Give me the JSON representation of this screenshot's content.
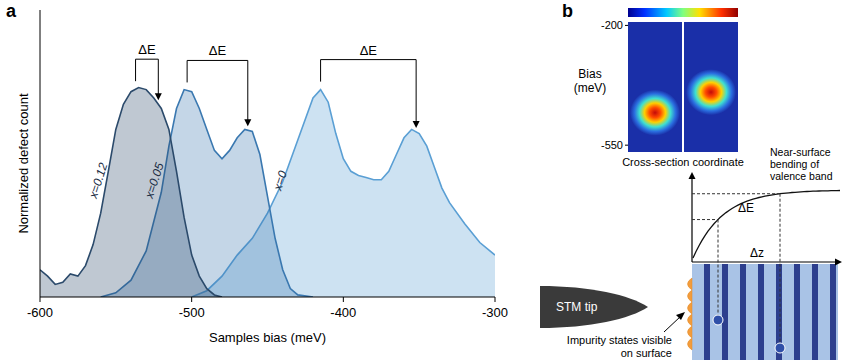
{
  "chart_data": {
    "type": "area",
    "label": "a",
    "x_label": "Samples bias (meV)",
    "y_label": "Normalized defect count",
    "xlim": [
      -600,
      -300
    ],
    "xticks": [
      -600,
      -500,
      -400,
      -300
    ],
    "ylim": [
      0,
      1.37
    ],
    "tick_labels": "x",
    "grid": false,
    "series": [
      {
        "name": "x=0.12",
        "color": "#2b4a6b",
        "x": [
          -600,
          -595,
          -590,
          -585,
          -580,
          -575,
          -570,
          -565,
          -560,
          -555,
          -550,
          -545,
          -540,
          -535,
          -530,
          -525,
          -520,
          -515,
          -510,
          -505,
          -500,
          -495,
          -490,
          -485,
          -480
        ],
        "values": [
          0.13,
          0.1,
          0.06,
          0.07,
          0.11,
          0.1,
          0.15,
          0.25,
          0.4,
          0.6,
          0.8,
          0.92,
          0.98,
          1.0,
          0.99,
          0.95,
          0.9,
          0.8,
          0.6,
          0.38,
          0.2,
          0.1,
          0.04,
          0.01,
          0
        ]
      },
      {
        "name": "x=0.05",
        "color": "#3a78b0",
        "x": [
          -560,
          -550,
          -540,
          -530,
          -520,
          -515,
          -510,
          -505,
          -500,
          -495,
          -490,
          -485,
          -480,
          -475,
          -470,
          -465,
          -460,
          -455,
          -450,
          -445,
          -440,
          -435,
          -430,
          -420
        ],
        "values": [
          0,
          0.02,
          0.08,
          0.22,
          0.5,
          0.72,
          0.9,
          0.99,
          0.98,
          0.9,
          0.8,
          0.7,
          0.66,
          0.7,
          0.76,
          0.8,
          0.79,
          0.68,
          0.48,
          0.28,
          0.13,
          0.04,
          0.01,
          0
        ]
      },
      {
        "name": "x=0",
        "color": "#5a9fd4",
        "x": [
          -500,
          -490,
          -480,
          -470,
          -460,
          -450,
          -440,
          -430,
          -420,
          -415,
          -410,
          -405,
          -400,
          -395,
          -390,
          -385,
          -380,
          -375,
          -370,
          -365,
          -360,
          -355,
          -350,
          -345,
          -340,
          -335,
          -330,
          -320,
          -310,
          -300
        ],
        "values": [
          0,
          0.03,
          0.1,
          0.2,
          0.28,
          0.4,
          0.55,
          0.75,
          0.95,
          0.99,
          0.93,
          0.78,
          0.66,
          0.6,
          0.58,
          0.57,
          0.56,
          0.56,
          0.6,
          0.68,
          0.76,
          0.8,
          0.78,
          0.72,
          0.62,
          0.52,
          0.45,
          0.35,
          0.26,
          0.2
        ]
      }
    ],
    "annotations": [
      {
        "text": "ΔE",
        "x1": -537,
        "x2": -522
      },
      {
        "text": "ΔE",
        "x1": -503,
        "x2": -463
      },
      {
        "text": "ΔE",
        "x1": -415,
        "x2": -352
      }
    ]
  },
  "diagram": {
    "label": "b",
    "inset": {
      "y_label": "Bias (meV)",
      "ylim": [
        -570,
        -190
      ],
      "yticks": [
        -200,
        -550
      ],
      "x_label": "Cross-section coordinate",
      "peak_bias": [
        -455,
        -395
      ]
    },
    "labels": {
      "delta_e": "ΔE",
      "delta_z": "Δz",
      "band": "Near-surface bending of valence band",
      "tip": "STM tip",
      "impurity": "Impurity states visible on surface"
    }
  }
}
